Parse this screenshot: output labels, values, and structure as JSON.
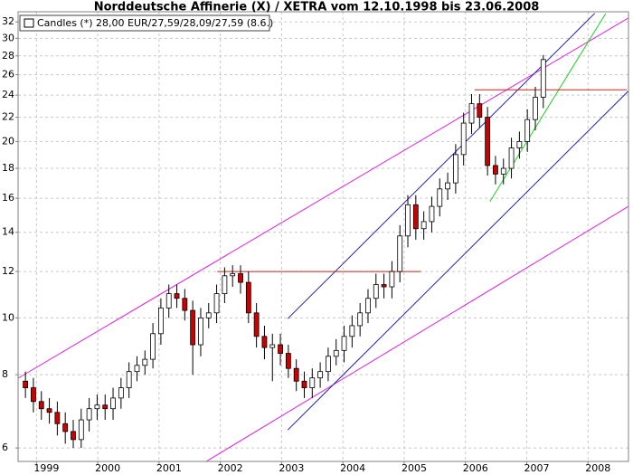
{
  "chart_data": {
    "type": "candlestick",
    "title": "Norddeutsche Affinerie (X) / XETRA vom 12.10.1998 bis 23.06.2008",
    "xlim": [
      1998.7,
      2008.66
    ],
    "xticks": [
      1999,
      2000,
      2001,
      2002,
      2003,
      2004,
      2005,
      2006,
      2007,
      2008
    ],
    "ylim": [
      5.69,
      33.3
    ],
    "yticks": [
      6,
      8,
      10,
      12,
      14,
      16,
      18,
      20,
      22,
      24,
      26,
      28,
      30,
      32
    ],
    "log_y": true,
    "grid": true,
    "legend": "top-left",
    "series": [
      {
        "name": "Candles (*) 28,00 EUR/27,59/28,09/27,59 (8.6.)",
        "up_color": "#ffffff",
        "down_color": "#cc0000",
        "x": [
          1998.82,
          1998.95,
          1999.08,
          1999.21,
          1999.34,
          1999.47,
          1999.6,
          1999.73,
          1999.86,
          1999.99,
          2000.12,
          2000.25,
          2000.38,
          2000.51,
          2000.64,
          2000.77,
          2000.9,
          2001.03,
          2001.16,
          2001.29,
          2001.42,
          2001.55,
          2001.68,
          2001.81,
          2001.94,
          2002.07,
          2002.2,
          2002.33,
          2002.46,
          2002.59,
          2002.72,
          2002.85,
          2002.98,
          2003.11,
          2003.24,
          2003.37,
          2003.5,
          2003.63,
          2003.76,
          2003.89,
          2004.02,
          2004.15,
          2004.28,
          2004.41,
          2004.54,
          2004.67,
          2004.8,
          2004.93,
          2005.06,
          2005.19,
          2005.32,
          2005.45,
          2005.58,
          2005.71,
          2005.84,
          2005.97,
          2006.1,
          2006.23,
          2006.36,
          2006.49,
          2006.62,
          2006.75,
          2006.88,
          2007.01,
          2007.14,
          2007.27
        ],
        "open": [
          7.8,
          7.6,
          7.2,
          7.0,
          6.9,
          6.6,
          6.4,
          6.2,
          6.7,
          7.0,
          7.1,
          7.0,
          7.3,
          7.6,
          8.1,
          8.3,
          8.5,
          9.4,
          10.4,
          11.0,
          10.8,
          10.3,
          9.0,
          10.0,
          10.2,
          11.0,
          11.8,
          11.9,
          11.5,
          10.2,
          9.3,
          8.9,
          9.0,
          8.7,
          8.2,
          7.8,
          7.6,
          7.9,
          8.1,
          8.6,
          8.8,
          9.3,
          9.7,
          10.2,
          10.8,
          11.4,
          11.3,
          12.0,
          13.8,
          15.6,
          14.2,
          14.6,
          15.5,
          16.6,
          17.0,
          19.0,
          21.5,
          23.2,
          22.0,
          18.2,
          17.6,
          18.0,
          19.5,
          20.0,
          21.8,
          23.8
        ],
        "high": [
          8.1,
          7.9,
          7.5,
          7.3,
          7.2,
          6.9,
          6.7,
          7.0,
          7.3,
          7.4,
          7.4,
          7.6,
          7.9,
          8.4,
          8.6,
          8.8,
          9.8,
          10.8,
          11.4,
          11.4,
          11.2,
          10.7,
          10.4,
          10.6,
          11.4,
          12.2,
          12.3,
          12.3,
          12.0,
          10.6,
          9.7,
          9.4,
          9.4,
          9.0,
          8.5,
          8.1,
          8.2,
          8.4,
          8.9,
          9.2,
          9.7,
          10.1,
          10.6,
          11.2,
          11.9,
          11.9,
          12.5,
          14.4,
          16.2,
          16.2,
          15.2,
          16.1,
          17.3,
          17.7,
          19.8,
          22.4,
          24.1,
          24.1,
          22.9,
          18.9,
          18.7,
          20.3,
          20.8,
          22.7,
          24.8,
          28.1
        ],
        "low": [
          7.3,
          6.9,
          6.7,
          6.6,
          6.3,
          6.1,
          6.0,
          6.0,
          6.4,
          6.7,
          6.7,
          6.7,
          7.0,
          7.3,
          7.8,
          8.0,
          8.2,
          9.0,
          10.0,
          10.4,
          9.9,
          8.0,
          8.6,
          9.6,
          9.8,
          10.6,
          11.3,
          11.0,
          9.8,
          8.9,
          8.5,
          7.8,
          8.3,
          7.9,
          7.5,
          7.3,
          7.3,
          7.6,
          7.8,
          8.3,
          8.4,
          8.9,
          9.3,
          9.8,
          10.4,
          10.8,
          10.8,
          11.5,
          13.2,
          13.6,
          13.6,
          14.0,
          14.9,
          15.9,
          16.3,
          18.2,
          20.6,
          21.1,
          17.5,
          16.9,
          16.9,
          17.3,
          18.7,
          19.2,
          20.9,
          22.8
        ],
        "close": [
          7.6,
          7.2,
          7.0,
          6.9,
          6.6,
          6.4,
          6.2,
          6.7,
          7.0,
          7.1,
          7.0,
          7.3,
          7.6,
          8.1,
          8.3,
          8.5,
          9.4,
          10.4,
          11.0,
          10.8,
          10.3,
          9.0,
          10.0,
          10.2,
          11.0,
          11.8,
          11.9,
          11.5,
          10.2,
          9.3,
          8.9,
          9.0,
          8.7,
          8.2,
          7.8,
          7.6,
          7.9,
          8.1,
          8.6,
          8.8,
          9.3,
          9.7,
          10.2,
          10.8,
          11.4,
          11.3,
          12.0,
          13.8,
          15.6,
          14.2,
          14.6,
          15.5,
          16.6,
          17.0,
          19.0,
          21.5,
          23.2,
          22.0,
          18.2,
          17.6,
          18.0,
          19.5,
          20.0,
          21.8,
          23.8,
          27.6
        ]
      }
    ],
    "lines": [
      {
        "color": "#e020e0",
        "x": [
          1998.7,
          2008.66
        ],
        "y": [
          7.89,
          32.5
        ]
      },
      {
        "color": "#e020e0",
        "x": [
          2001.77,
          2008.66
        ],
        "y": [
          5.69,
          15.5
        ]
      },
      {
        "color": "#2020b0",
        "x": [
          2003.1,
          2008.11
        ],
        "y": [
          9.97,
          33.1
        ]
      },
      {
        "color": "#2020b0",
        "x": [
          2003.1,
          2008.66
        ],
        "y": [
          6.44,
          24.4
        ]
      },
      {
        "color": "#20d020",
        "x": [
          2006.4,
          2008.29
        ],
        "y": [
          15.8,
          33.1
        ]
      },
      {
        "color": "#cc2020",
        "x": [
          2001.95,
          2005.27
        ],
        "y": [
          12,
          12
        ]
      },
      {
        "color": "#cc2020",
        "x": [
          2006.15,
          2008.63
        ],
        "y": [
          24.5,
          24.5
        ]
      }
    ]
  }
}
